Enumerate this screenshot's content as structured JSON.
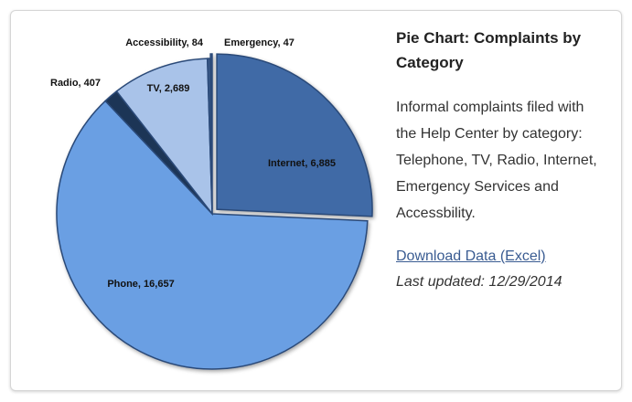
{
  "panel": {
    "title": "Pie Chart: Complaints by Category",
    "description": "Informal complaints filed with the Help Center by category: Telephone, TV, Radio, Internet, Emergency Services and Accessbility.",
    "download_label": "Download Data (Excel)",
    "last_updated": "Last updated: 12/29/2014"
  },
  "chart_data": {
    "type": "pie",
    "title": "",
    "categories": [
      "Internet",
      "Phone",
      "Radio",
      "TV",
      "Accessibility",
      "Emergency"
    ],
    "values": [
      6885,
      16657,
      407,
      2689,
      84,
      47
    ],
    "labels": [
      "Internet, 6,885",
      "Phone, 16,657",
      "Radio, 407",
      "TV, 2,689",
      "Accessibility, 84",
      "Emergency, 47"
    ],
    "colors": [
      "#3f6aa6",
      "#6a9fe3",
      "#1f3556",
      "#a9c3e9",
      "#3a5a88",
      "#3a5a88"
    ],
    "exploded": [
      "Internet",
      "Emergency"
    ],
    "start_angle_deg": 0,
    "direction": "clockwise"
  }
}
